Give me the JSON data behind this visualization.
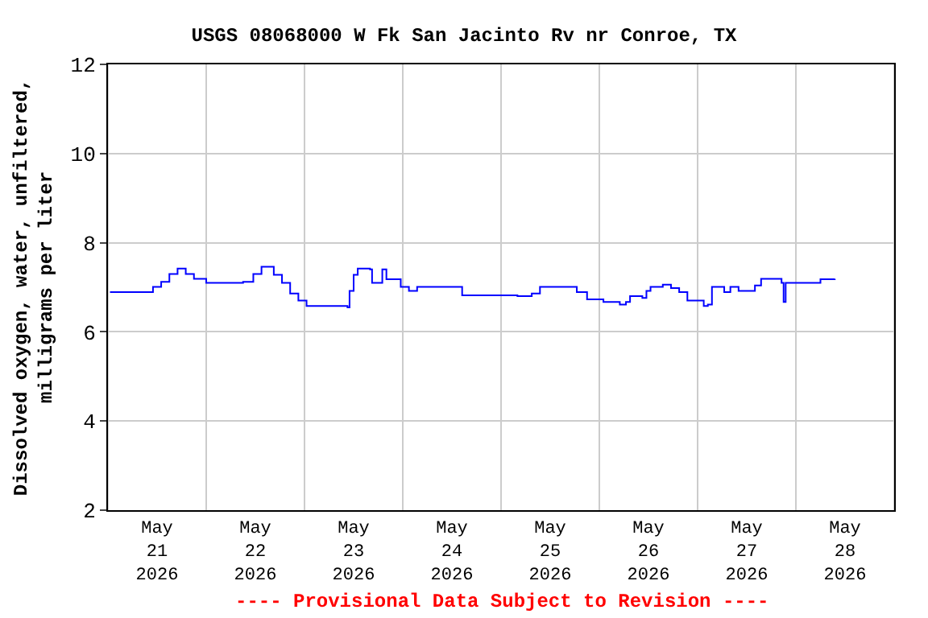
{
  "chart_data": {
    "type": "step",
    "title": "USGS 08068000 W Fk San Jacinto Rv nr Conroe, TX",
    "ylabel": "Dissolved oxygen, water, unfiltered,\nmilligrams per liter",
    "annotations": [
      "---- Provisional Data Subject to Revision ----"
    ],
    "x": [
      "2026-05-21T00:30",
      "2026-05-21T09:00",
      "2026-05-21T11:00",
      "2026-05-21T13:00",
      "2026-05-21T15:00",
      "2026-05-21T17:00",
      "2026-05-21T19:00",
      "2026-05-21T21:00",
      "2026-05-22T00:00",
      "2026-05-22T04:30",
      "2026-05-22T09:00",
      "2026-05-22T11:30",
      "2026-05-22T13:30",
      "2026-05-22T16:30",
      "2026-05-22T18:30",
      "2026-05-22T20:30",
      "2026-05-22T22:30",
      "2026-05-23T00:30",
      "2026-05-23T06:30",
      "2026-05-23T10:30",
      "2026-05-23T11:00",
      "2026-05-23T12:00",
      "2026-05-23T13:00",
      "2026-05-23T16:00",
      "2026-05-23T16:30",
      "2026-05-23T19:00",
      "2026-05-23T20:00",
      "2026-05-23T23:30",
      "2026-05-24T01:30",
      "2026-05-24T03:30",
      "2026-05-24T11:30",
      "2026-05-24T14:30",
      "2026-05-25T04:00",
      "2026-05-25T07:30",
      "2026-05-25T09:30",
      "2026-05-25T17:00",
      "2026-05-25T18:30",
      "2026-05-25T21:00",
      "2026-05-26T01:00",
      "2026-05-26T05:00",
      "2026-05-26T06:30",
      "2026-05-26T07:30",
      "2026-05-26T10:30",
      "2026-05-26T11:30",
      "2026-05-26T12:30",
      "2026-05-26T15:30",
      "2026-05-26T17:30",
      "2026-05-26T19:30",
      "2026-05-26T21:30",
      "2026-05-27T00:30",
      "2026-05-27T01:30",
      "2026-05-27T02:30",
      "2026-05-27T03:30",
      "2026-05-27T06:30",
      "2026-05-27T08:00",
      "2026-05-27T10:00",
      "2026-05-27T14:00",
      "2026-05-27T15:30",
      "2026-05-27T19:30",
      "2026-05-27T20:30",
      "2026-05-27T21:00",
      "2026-05-27T21:30",
      "2026-05-28T05:30",
      "2026-05-28T06:00",
      "2026-05-28T07:30",
      "2026-05-28T09:30"
    ],
    "series": [
      {
        "color": "#0000ff",
        "values": [
          6.89,
          6.89,
          7.01,
          7.12,
          7.3,
          7.42,
          7.3,
          7.19,
          7.1,
          7.1,
          7.12,
          7.3,
          7.46,
          7.28,
          7.1,
          6.86,
          6.7,
          6.58,
          6.58,
          6.55,
          6.92,
          7.28,
          7.42,
          7.4,
          7.1,
          7.4,
          7.18,
          7.01,
          6.92,
          7.01,
          7.01,
          6.82,
          6.8,
          6.86,
          7.01,
          7.01,
          6.89,
          6.73,
          6.67,
          6.61,
          6.67,
          6.8,
          6.76,
          6.92,
          7.01,
          7.06,
          6.98,
          6.89,
          6.7,
          6.7,
          6.58,
          6.61,
          7.01,
          6.89,
          7.01,
          6.92,
          7.04,
          7.19,
          7.19,
          7.1,
          6.67,
          7.1,
          7.1,
          7.18,
          7.18,
          7.19
        ]
      }
    ],
    "xlim": [
      "2026-05-21T00:00",
      "2026-05-29T00:00"
    ],
    "xticks": [
      {
        "value": "2026-05-21T00:00",
        "label": null
      },
      {
        "value": "2026-05-21T12:00",
        "label": "May\n21\n2026"
      },
      {
        "value": "2026-05-22T00:00",
        "label": null
      },
      {
        "value": "2026-05-22T12:00",
        "label": "May\n22\n2026"
      },
      {
        "value": "2026-05-23T00:00",
        "label": null
      },
      {
        "value": "2026-05-23T12:00",
        "label": "May\n23\n2026"
      },
      {
        "value": "2026-05-24T00:00",
        "label": null
      },
      {
        "value": "2026-05-24T12:00",
        "label": "May\n24\n2026"
      },
      {
        "value": "2026-05-25T00:00",
        "label": null
      },
      {
        "value": "2026-05-25T12:00",
        "label": "May\n25\n2026"
      },
      {
        "value": "2026-05-26T00:00",
        "label": null
      },
      {
        "value": "2026-05-26T12:00",
        "label": "May\n26\n2026"
      },
      {
        "value": "2026-05-27T00:00",
        "label": null
      },
      {
        "value": "2026-05-27T12:00",
        "label": "May\n27\n2026"
      },
      {
        "value": "2026-05-28T00:00",
        "label": null
      },
      {
        "value": "2026-05-28T12:00",
        "label": "May\n28\n2026"
      },
      {
        "value": "2026-05-29T00:00",
        "label": null
      }
    ],
    "ylim": [
      2,
      12
    ],
    "yticks": [
      2,
      4,
      6,
      8,
      10,
      12
    ],
    "grid": true
  }
}
